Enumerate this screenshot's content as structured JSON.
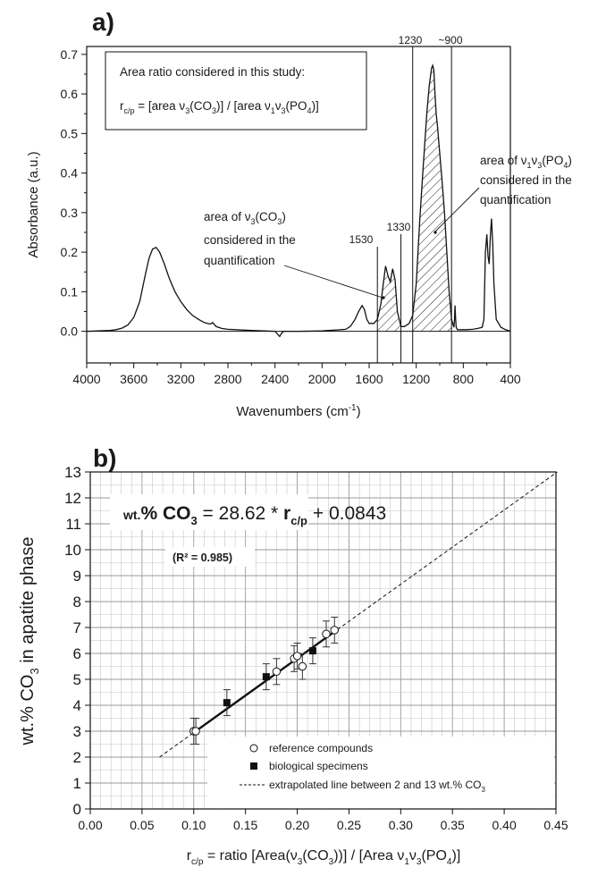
{
  "panel_a": {
    "label": "a)",
    "box": {
      "line1": "Area ratio considered in this study:",
      "eq_prefix": "r",
      "eq_sub": "c/p",
      "eq_rest": " = [area ν",
      "eq_s1": "3",
      "eq_m1": "(CO",
      "eq_s2": "3",
      "eq_m2": ")] / [area ν",
      "eq_s3": "1",
      "eq_m3": "ν",
      "eq_s4": "3",
      "eq_m4": "(PO",
      "eq_s5": "4",
      "eq_end": ")]"
    },
    "annotations": {
      "co3_line1_pre": "area of ν",
      "co3_line1_sub": "3",
      "co3_line1_post": "(CO",
      "co3_line1_sub2": "3",
      "co3_line1_end": ")",
      "co3_line2": "considered in the",
      "co3_line3": "quantification",
      "po4_line1_pre": "area of ν",
      "po4_line1_sub": "1",
      "po4_line1_mid": "ν",
      "po4_line1_sub2": "3",
      "po4_line1_post": "(PO",
      "po4_line1_sub3": "4",
      "po4_line1_end": ")",
      "po4_line2": "considered in the",
      "po4_line3": "quantification",
      "mark_1530": "1530",
      "mark_1330": "1330",
      "mark_1230": "1230",
      "mark_900": "~900"
    }
  },
  "panel_b": {
    "label": "b)",
    "equation": {
      "pre": "wt.",
      "main": "% CO",
      "sub3": "3",
      "mid": " = 28.62 * ",
      "r": "r",
      "rsub": "c/p",
      "end": " + 0.0843"
    },
    "r2": "(R² = 0.985)",
    "legend": {
      "ref": "reference compounds",
      "bio": "biological specimens",
      "extrap_pre": "extrapolated line between 2 and 13 wt.% CO",
      "extrap_sub": "3"
    }
  },
  "chart_data": [
    {
      "type": "line",
      "xlabel": "Wavenumbers (cm-1)",
      "xlabel_parts": {
        "pre": "Wavenumbers (cm",
        "sup": "-1",
        "post": ")"
      },
      "ylabel": "Absorbance (a.u.)",
      "xlim": [
        4000,
        400
      ],
      "ylim": [
        -0.08,
        0.72
      ],
      "x_ticks": [
        4000,
        3600,
        3200,
        2800,
        2400,
        2000,
        1600,
        1200,
        800,
        400
      ],
      "x_tick_labels": [
        "4000",
        "3600",
        "3200",
        "2800",
        "2400",
        "2000",
        "1600",
        "1200",
        "800",
        "400"
      ],
      "y_ticks": [
        0.0,
        0.1,
        0.2,
        0.3,
        0.4,
        0.5,
        0.6,
        0.7
      ],
      "y_tick_labels": [
        "0.0",
        "0.1",
        "0.2",
        "0.3",
        "0.4",
        "0.5",
        "0.6",
        "0.7"
      ],
      "vertical_markers": [
        1530,
        1330,
        1230,
        900
      ],
      "shaded_regions": [
        {
          "name": "CO3",
          "from": 1530,
          "to": 1330
        },
        {
          "name": "PO4",
          "from": 1230,
          "to": 900
        }
      ],
      "series": [
        {
          "x": [
            4000,
            3900,
            3800,
            3750,
            3700,
            3650,
            3600,
            3550,
            3500,
            3470,
            3440,
            3410,
            3380,
            3340,
            3300,
            3250,
            3200,
            3150,
            3100,
            3050,
            3000,
            2950,
            2930,
            2900,
            2850,
            2800,
            2600,
            2400,
            2360,
            2340,
            2320,
            2200,
            2000,
            1800,
            1760,
            1720,
            1690,
            1660,
            1640,
            1620,
            1600,
            1560,
            1530,
            1500,
            1480,
            1460,
            1440,
            1420,
            1400,
            1380,
            1360,
            1330,
            1300,
            1260,
            1230,
            1200,
            1170,
            1140,
            1110,
            1090,
            1070,
            1060,
            1050,
            1040,
            1030,
            1020,
            1000,
            980,
            960,
            940,
            920,
            900,
            880,
            875,
            870,
            865,
            860,
            850,
            820,
            780,
            720,
            680,
            640,
            625,
            612,
            600,
            590,
            580,
            570,
            560,
            550,
            540,
            520,
            480,
            440,
            400
          ],
          "y": [
            0.0,
            0.001,
            0.002,
            0.004,
            0.008,
            0.016,
            0.035,
            0.075,
            0.145,
            0.185,
            0.208,
            0.212,
            0.2,
            0.17,
            0.135,
            0.1,
            0.075,
            0.055,
            0.04,
            0.03,
            0.022,
            0.018,
            0.022,
            0.012,
            0.007,
            0.005,
            0.002,
            0.0,
            -0.013,
            -0.003,
            0.0,
            0.0,
            0.001,
            0.005,
            0.012,
            0.03,
            0.05,
            0.065,
            0.055,
            0.03,
            0.02,
            0.02,
            0.03,
            0.07,
            0.12,
            0.165,
            0.14,
            0.125,
            0.158,
            0.13,
            0.05,
            0.012,
            0.012,
            0.02,
            0.04,
            0.12,
            0.28,
            0.42,
            0.55,
            0.62,
            0.665,
            0.672,
            0.66,
            0.6,
            0.55,
            0.52,
            0.45,
            0.38,
            0.3,
            0.2,
            0.1,
            0.03,
            0.01,
            0.03,
            0.065,
            0.03,
            0.01,
            0.004,
            0.004,
            0.004,
            0.005,
            0.007,
            0.01,
            0.03,
            0.2,
            0.245,
            0.19,
            0.17,
            0.24,
            0.285,
            0.22,
            0.12,
            0.03,
            0.01,
            0.004,
            0.0
          ]
        }
      ]
    },
    {
      "type": "scatter",
      "xlabel": "r c/p = ratio [Area(ν3(CO3))] / [Area ν1ν3(PO4)]",
      "xlabel_parts": {
        "r": "r",
        "rsub": "c/p",
        "t1": " = ratio [Area(ν",
        "s1": "3",
        "t2": "(CO",
        "s2": "3",
        "t3": "))] / [Area ν",
        "s3": "1",
        "t4": "ν",
        "s4": "3",
        "t5": "(PO",
        "s5": "4",
        "t6": ")]"
      },
      "ylabel": "wt.% CO3 in apatite phase",
      "ylabel_parts": {
        "pre": "wt.% CO",
        "sub": "3",
        "post": " in apatite phase"
      },
      "xlim": [
        0.0,
        0.45
      ],
      "ylim": [
        0,
        13
      ],
      "x_ticks": [
        0.0,
        0.05,
        0.1,
        0.15,
        0.2,
        0.25,
        0.3,
        0.35,
        0.4,
        0.45
      ],
      "x_tick_labels": [
        "0.00",
        "0.05",
        "0.10",
        "0.15",
        "0.20",
        "0.25",
        "0.30",
        "0.35",
        "0.40",
        "0.45"
      ],
      "y_ticks": [
        0,
        1,
        2,
        3,
        4,
        5,
        6,
        7,
        8,
        9,
        10,
        11,
        12,
        13
      ],
      "y_tick_labels": [
        "0",
        "1",
        "2",
        "3",
        "4",
        "5",
        "6",
        "7",
        "8",
        "9",
        "10",
        "11",
        "12",
        "13"
      ],
      "grid": true,
      "series": [
        {
          "name": "reference compounds",
          "marker": "open-circle",
          "x": [
            0.1,
            0.102,
            0.18,
            0.197,
            0.2,
            0.205,
            0.228,
            0.236
          ],
          "y": [
            3.0,
            3.0,
            5.3,
            5.8,
            5.9,
            5.5,
            6.75,
            6.9
          ],
          "err": [
            0.5,
            0.5,
            0.5,
            0.5,
            0.5,
            0.5,
            0.5,
            0.5
          ]
        },
        {
          "name": "biological specimens",
          "marker": "filled-square",
          "x": [
            0.132,
            0.17,
            0.215
          ],
          "y": [
            4.1,
            5.1,
            6.1
          ],
          "err": [
            0.5,
            0.5,
            0.5
          ]
        }
      ],
      "fit": {
        "slope": 28.62,
        "intercept": 0.0843,
        "x_range": [
          0.1,
          0.236
        ]
      },
      "extrapolation": {
        "y_range": [
          2,
          13
        ]
      }
    }
  ]
}
